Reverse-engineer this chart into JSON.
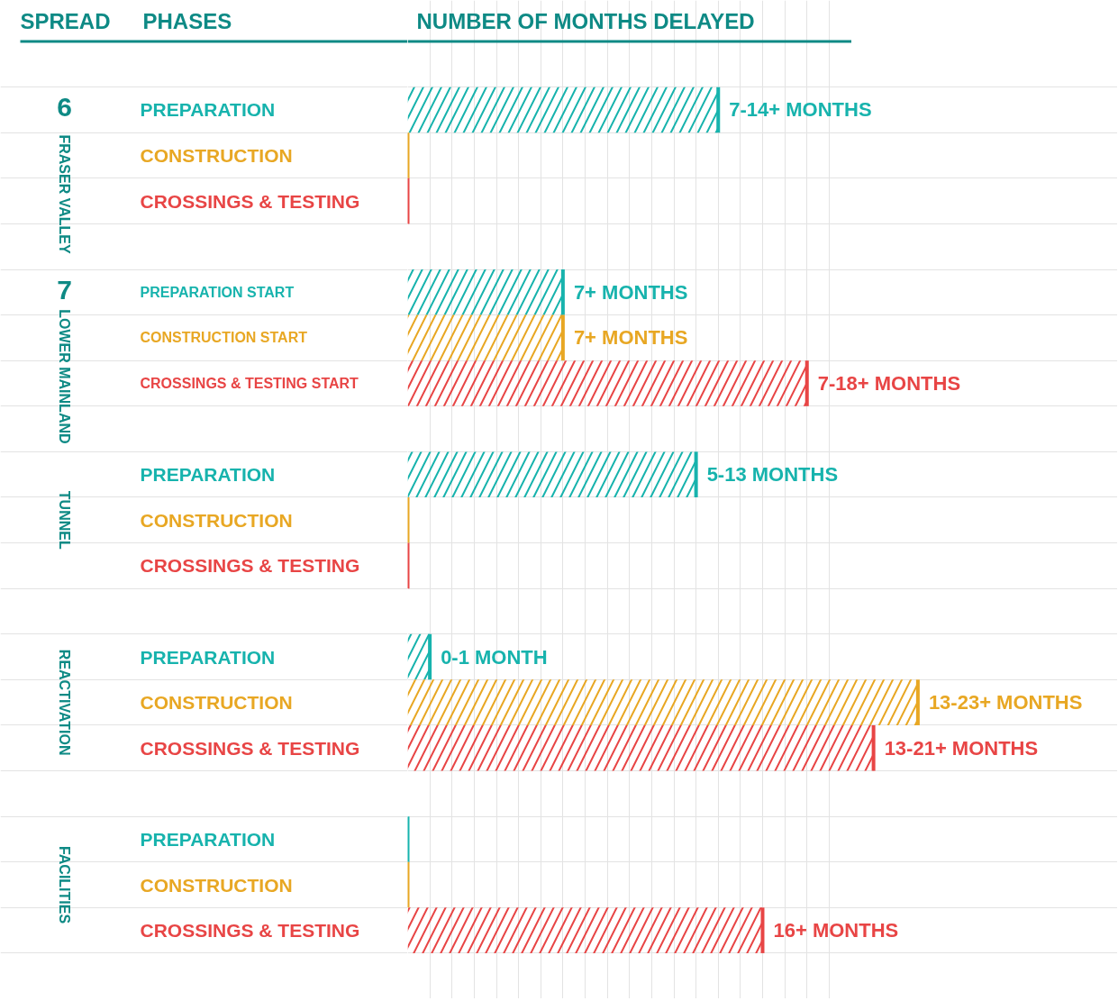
{
  "chart_data": {
    "type": "bar",
    "orientation": "horizontal",
    "xlabel": "NUMBER OF MONTHS DELAYED",
    "categories": [
      "PREPARATION",
      "CONSTRUCTION",
      "CROSSINGS & TESTING",
      "PREPARATION START",
      "CONSTRUCTION START",
      "CROSSINGS & TESTING START",
      "PREPARATION",
      "CONSTRUCTION",
      "CROSSINGS & TESTING",
      "PREPARATION",
      "CONSTRUCTION",
      "CROSSINGS & TESTING",
      "PREPARATION",
      "CONSTRUCTION",
      "CROSSINGS & TESTING"
    ],
    "values": [
      14,
      0,
      0,
      7,
      7,
      18,
      13,
      0,
      0,
      1,
      23,
      21,
      0,
      0,
      16
    ],
    "value_labels": [
      "7-14+ MONTHS",
      null,
      null,
      "7+ MONTHS",
      "7+ MONTHS",
      "7-18+ MONTHS",
      "5-13 MONTHS",
      null,
      null,
      "0-1 MONTH",
      "13-23+ MONTHS",
      "13-21+ MONTHS",
      null,
      null,
      "16+ MONTHS"
    ],
    "colors": [
      "#17b3ad",
      "#e8a723",
      "#e84545",
      "#17b3ad",
      "#e8a723",
      "#e84545",
      "#17b3ad",
      "#e8a723",
      "#e84545",
      "#17b3ad",
      "#e8a723",
      "#e84545",
      "#17b3ad",
      "#e8a723",
      "#e84545"
    ],
    "xlim": [
      0,
      32
    ],
    "xticks": [
      {
        "value": 0,
        "label": null
      },
      {
        "value": 1,
        "label": null
      },
      {
        "value": 2,
        "label": null
      },
      {
        "value": 3,
        "label": null
      },
      {
        "value": 4,
        "label": null
      },
      {
        "value": 5,
        "label": null
      },
      {
        "value": 6,
        "label": null
      },
      {
        "value": 7,
        "label": null
      },
      {
        "value": 8,
        "label": null
      },
      {
        "value": 9,
        "label": null
      },
      {
        "value": 10,
        "label": null
      },
      {
        "value": 11,
        "label": null
      },
      {
        "value": 12,
        "label": null
      },
      {
        "value": 13,
        "label": null
      },
      {
        "value": 14,
        "label": null
      },
      {
        "value": 15,
        "label": null
      },
      {
        "value": 16,
        "label": null
      },
      {
        "value": 17,
        "label": null
      },
      {
        "value": 18,
        "label": null
      },
      {
        "value": 19,
        "label": null
      }
    ],
    "tick_labels": false,
    "grid": true,
    "annotations": [
      "SPREAD",
      "PHASES",
      "6",
      "FRASER VALLEY",
      "7",
      "LOWER MAINLAND",
      "TUNNEL",
      "REACTIVATION",
      "FACILITIES"
    ]
  }
}
